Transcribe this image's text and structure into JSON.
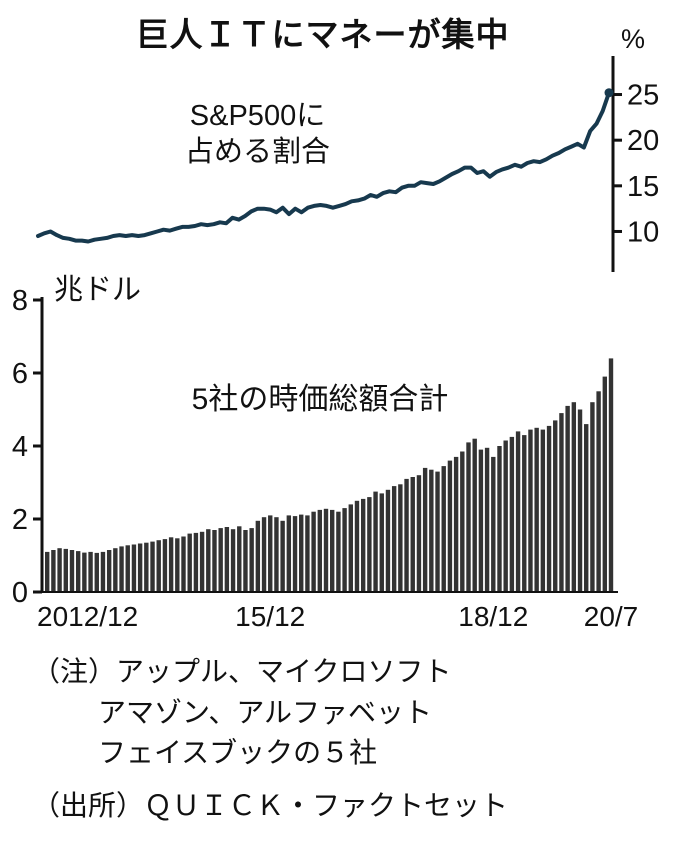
{
  "title": "巨人ＩＴにマネーが集中",
  "colors": {
    "axis": "#111111",
    "line": "#17394e",
    "bar": "#333333",
    "background": "#ffffff"
  },
  "chart_data": [
    {
      "type": "line",
      "name": "sp500-share",
      "annotation": "S&P500に占める割合",
      "annotation_lines": [
        "S&P500に",
        "占める割合"
      ],
      "unit": "%",
      "frequency": "monthly",
      "x_start": "2012/12",
      "x_end": "2020/7",
      "ylim": [
        6,
        29
      ],
      "yticks": [
        10,
        15,
        20,
        25
      ],
      "legend": "none",
      "grid": false,
      "line_color": "#17394e",
      "values": [
        9.5,
        9.8,
        10.0,
        9.6,
        9.3,
        9.2,
        9.0,
        9.0,
        8.9,
        9.1,
        9.2,
        9.3,
        9.5,
        9.6,
        9.5,
        9.6,
        9.5,
        9.6,
        9.8,
        10.0,
        10.2,
        10.1,
        10.3,
        10.5,
        10.5,
        10.6,
        10.8,
        10.7,
        10.8,
        11.0,
        10.9,
        11.5,
        11.3,
        11.7,
        12.2,
        12.5,
        12.5,
        12.4,
        12.1,
        12.6,
        11.9,
        12.5,
        12.1,
        12.6,
        12.8,
        12.9,
        12.8,
        12.6,
        12.8,
        13.0,
        13.3,
        13.4,
        13.6,
        14.0,
        13.8,
        14.2,
        14.4,
        14.3,
        14.8,
        15.0,
        15.0,
        15.4,
        15.3,
        15.2,
        15.5,
        15.9,
        16.3,
        16.6,
        17.0,
        17.0,
        16.4,
        16.6,
        16.0,
        16.5,
        16.8,
        17.0,
        17.3,
        17.1,
        17.5,
        17.7,
        17.6,
        17.9,
        18.3,
        18.6,
        19.0,
        19.3,
        19.6,
        19.2,
        21.0,
        21.8,
        23.2,
        25.2
      ]
    },
    {
      "type": "bar",
      "name": "market-cap-total",
      "annotation": "5社の時価総額合計",
      "unit": "兆ドル",
      "frequency": "monthly",
      "x_start": "2012/12",
      "x_end": "2020/7",
      "ylim": [
        0,
        8
      ],
      "yticks": [
        0,
        2,
        4,
        6,
        8
      ],
      "legend": "none",
      "grid": false,
      "bar_color": "#333333",
      "x_ticks": [
        {
          "label": "2012/12",
          "index": 0
        },
        {
          "label": "15/12",
          "index": 36
        },
        {
          "label": "18/12",
          "index": 72
        },
        {
          "label": "20/7",
          "index": 91
        }
      ],
      "values": [
        1.1,
        1.15,
        1.2,
        1.18,
        1.15,
        1.12,
        1.08,
        1.1,
        1.07,
        1.1,
        1.15,
        1.2,
        1.25,
        1.28,
        1.3,
        1.33,
        1.35,
        1.38,
        1.42,
        1.45,
        1.5,
        1.47,
        1.52,
        1.6,
        1.62,
        1.65,
        1.72,
        1.7,
        1.75,
        1.78,
        1.72,
        1.8,
        1.7,
        1.75,
        1.95,
        2.05,
        2.1,
        2.05,
        1.95,
        2.1,
        2.08,
        2.12,
        2.1,
        2.2,
        2.25,
        2.28,
        2.25,
        2.2,
        2.3,
        2.4,
        2.5,
        2.55,
        2.6,
        2.75,
        2.7,
        2.8,
        2.9,
        2.95,
        3.1,
        3.15,
        3.2,
        3.4,
        3.35,
        3.3,
        3.45,
        3.6,
        3.7,
        3.85,
        4.1,
        4.2,
        3.9,
        3.95,
        3.7,
        4.0,
        4.15,
        4.25,
        4.4,
        4.3,
        4.45,
        4.5,
        4.45,
        4.55,
        4.7,
        4.9,
        5.1,
        5.2,
        5.0,
        4.6,
        5.2,
        5.5,
        5.9,
        6.4
      ]
    }
  ],
  "notes": {
    "note_label": "（注）",
    "note_lines": [
      "アップル、マイクロソフト",
      "アマゾン、アルファベット",
      "フェイスブックの５社"
    ],
    "source_label": "（出所）",
    "source": "ＱＵＩＣＫ・ファクトセット"
  }
}
